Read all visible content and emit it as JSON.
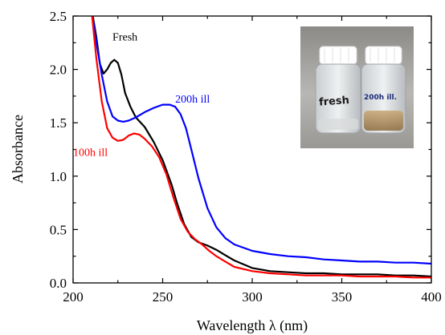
{
  "chart_data": {
    "type": "line",
    "title": "",
    "xlabel": "Wavelength λ (nm)",
    "ylabel": "Absorbance",
    "xlim": [
      200,
      400
    ],
    "ylim": [
      0,
      2.5
    ],
    "xticks": [
      200,
      250,
      300,
      350,
      400
    ],
    "yticks": [
      0.0,
      0.5,
      1.0,
      1.5,
      2.0,
      2.5
    ],
    "grid": false,
    "legend": "none",
    "series": [
      {
        "name": "Fresh",
        "color": "#000000",
        "x": [
          210,
          213,
          215,
          217,
          219,
          221,
          223,
          225,
          227,
          229,
          232,
          235,
          240,
          245,
          250,
          255,
          258,
          262,
          266,
          270,
          275,
          280,
          285,
          290,
          300,
          310,
          320,
          330,
          340,
          350,
          360,
          370,
          380,
          390,
          400
        ],
        "y": [
          2.6,
          2.3,
          2.05,
          1.96,
          2.0,
          2.06,
          2.09,
          2.06,
          1.95,
          1.78,
          1.65,
          1.55,
          1.46,
          1.32,
          1.15,
          0.92,
          0.75,
          0.55,
          0.43,
          0.38,
          0.35,
          0.31,
          0.26,
          0.21,
          0.14,
          0.11,
          0.1,
          0.09,
          0.09,
          0.08,
          0.08,
          0.08,
          0.07,
          0.07,
          0.06
        ]
      },
      {
        "name": "200h ill",
        "color": "#0000ff",
        "x": [
          210,
          213,
          216,
          219,
          222,
          225,
          228,
          231,
          235,
          240,
          245,
          250,
          254,
          257,
          260,
          263,
          266,
          270,
          275,
          280,
          285,
          290,
          300,
          310,
          320,
          330,
          340,
          350,
          360,
          370,
          380,
          390,
          400
        ],
        "y": [
          2.6,
          2.25,
          1.95,
          1.7,
          1.56,
          1.52,
          1.51,
          1.52,
          1.55,
          1.6,
          1.64,
          1.67,
          1.67,
          1.65,
          1.58,
          1.45,
          1.25,
          0.98,
          0.7,
          0.52,
          0.42,
          0.36,
          0.3,
          0.27,
          0.25,
          0.24,
          0.22,
          0.21,
          0.2,
          0.2,
          0.19,
          0.19,
          0.18
        ]
      },
      {
        "name": "100h ill",
        "color": "#ff0000",
        "x": [
          210,
          213,
          216,
          219,
          222,
          225,
          228,
          231,
          234,
          237,
          240,
          244,
          248,
          252,
          256,
          260,
          264,
          268,
          272,
          276,
          280,
          285,
          290,
          300,
          310,
          320,
          330,
          340,
          350,
          360,
          370,
          380,
          390,
          400
        ],
        "y": [
          2.6,
          2.1,
          1.7,
          1.45,
          1.36,
          1.33,
          1.34,
          1.38,
          1.4,
          1.39,
          1.35,
          1.28,
          1.18,
          1.02,
          0.8,
          0.6,
          0.48,
          0.41,
          0.36,
          0.3,
          0.25,
          0.2,
          0.15,
          0.11,
          0.09,
          0.08,
          0.07,
          0.07,
          0.07,
          0.06,
          0.06,
          0.06,
          0.05,
          0.05
        ]
      }
    ],
    "annotations": [
      {
        "text": "Fresh",
        "x": 222,
        "y": 2.27,
        "color": "#000000"
      },
      {
        "text": "200h ill",
        "x": 257,
        "y": 1.69,
        "color": "#0000ff"
      },
      {
        "text": "100h ill",
        "x": 200,
        "y": 1.19,
        "color": "#ff0000"
      }
    ],
    "inset": {
      "kind": "photo",
      "vial_labels": [
        "fresh",
        "200h ill."
      ]
    }
  }
}
